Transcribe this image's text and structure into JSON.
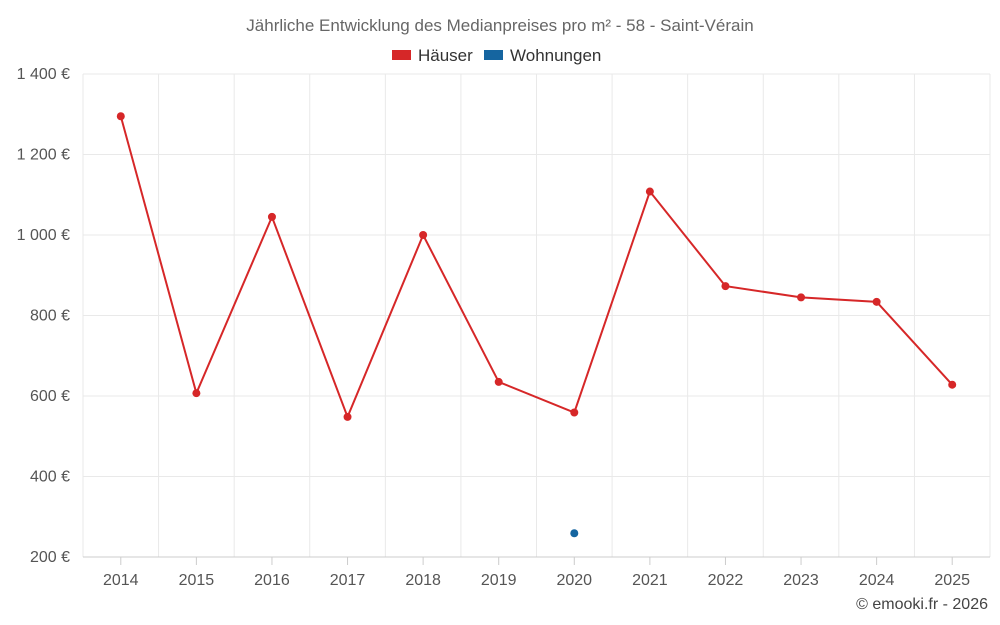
{
  "chart_data": {
    "type": "line",
    "title": "Jährliche Entwicklung des Medianpreises pro m² - 58 - Saint-Vérain",
    "categories": [
      "2014",
      "2015",
      "2016",
      "2017",
      "2018",
      "2019",
      "2020",
      "2021",
      "2022",
      "2023",
      "2024",
      "2025"
    ],
    "series": [
      {
        "name": "Häuser",
        "color": "#d62728",
        "values": [
          1295,
          607,
          1045,
          548,
          1000,
          635,
          559,
          1108,
          873,
          845,
          834,
          628
        ]
      },
      {
        "name": "Wohnungen",
        "color": "#1565a0",
        "values": [
          null,
          null,
          null,
          null,
          null,
          null,
          259,
          null,
          null,
          null,
          null,
          null
        ]
      }
    ],
    "ylim": [
      200,
      1400
    ],
    "yticks": [
      200,
      400,
      600,
      800,
      1000,
      1200,
      1400
    ],
    "ytick_labels": [
      "200 €",
      "400 €",
      "600 €",
      "800 €",
      "1 000 €",
      "1 200 €",
      "1 400 €"
    ],
    "grid": true,
    "legend_position": "top-center",
    "credit": "© emooki.fr - 2026"
  }
}
